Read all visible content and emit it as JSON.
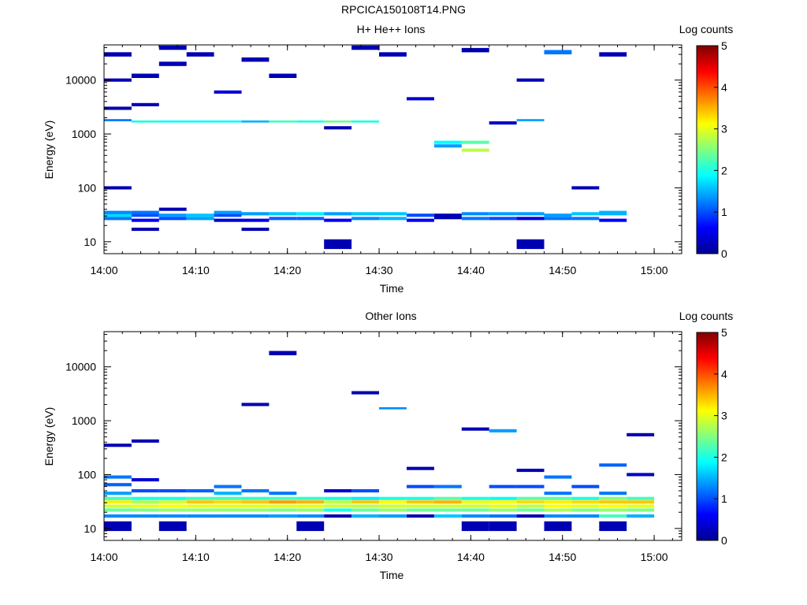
{
  "page_title": "RPCICA150108T14.PNG",
  "colormap": [
    "#00008f",
    "#0000ff",
    "#0080ff",
    "#00ffff",
    "#80ff80",
    "#ffff00",
    "#ff8000",
    "#ff0000",
    "#800000"
  ],
  "chart_data": [
    {
      "type": "heatmap",
      "title": "H+ He++ Ions",
      "xlabel": "Time",
      "ylabel": "Energy (eV)",
      "yscale": "log",
      "ylim": [
        6,
        45000
      ],
      "xlim": [
        "14:00",
        "15:03"
      ],
      "x_ticks": [
        "14:00",
        "14:10",
        "14:20",
        "14:30",
        "14:40",
        "14:50",
        "15:00"
      ],
      "y_ticks": [
        "10",
        "100",
        "1000",
        "10000"
      ],
      "colorbar": {
        "label": "Log counts",
        "range": [
          0,
          5
        ],
        "ticks": [
          "0",
          "1",
          "2",
          "3",
          "4",
          "5"
        ]
      },
      "time_bins": [
        "14:00",
        "14:03",
        "14:06",
        "14:09",
        "14:12",
        "14:15",
        "14:18",
        "14:21",
        "14:24",
        "14:27",
        "14:30",
        "14:33",
        "14:36",
        "14:39",
        "14:42",
        "14:45",
        "14:48",
        "14:51",
        "14:54",
        "14:57",
        "15:00"
      ],
      "cells": [
        [
          0,
          10,
          27,
          1.2
        ],
        [
          0,
          10,
          31,
          1.7
        ],
        [
          0,
          10,
          35,
          1.3
        ],
        [
          0,
          10,
          100,
          0.2
        ],
        [
          0,
          10,
          1800,
          1.2
        ],
        [
          0,
          10,
          3000,
          0.2
        ],
        [
          0,
          10,
          10000,
          0.2
        ],
        [
          0,
          10,
          30000,
          0.2
        ],
        [
          1,
          10,
          17,
          0.2
        ],
        [
          1,
          10,
          25,
          0.6
        ],
        [
          1,
          10,
          31,
          1.0
        ],
        [
          1,
          10,
          35,
          1.2
        ],
        [
          1,
          10,
          1700,
          2.0
        ],
        [
          1,
          10,
          3500,
          0.2
        ],
        [
          1,
          10,
          12000,
          0.2
        ],
        [
          2,
          10,
          27,
          1.0
        ],
        [
          2,
          10,
          31,
          1.4
        ],
        [
          2,
          10,
          40,
          0.2
        ],
        [
          2,
          10,
          1700,
          1.9
        ],
        [
          2,
          10,
          20000,
          0.2
        ],
        [
          2,
          10,
          40000,
          0.2
        ],
        [
          3,
          10,
          27,
          1.4
        ],
        [
          3,
          10,
          31,
          1.6
        ],
        [
          3,
          10,
          1700,
          1.9
        ],
        [
          3,
          10,
          30000,
          0.2
        ],
        [
          4,
          10,
          25,
          0.4
        ],
        [
          4,
          10,
          31,
          1.0
        ],
        [
          4,
          10,
          35,
          1.4
        ],
        [
          4,
          10,
          1700,
          1.9
        ],
        [
          4,
          10,
          6000,
          0.4
        ],
        [
          5,
          10,
          17,
          0.2
        ],
        [
          5,
          10,
          25,
          0.5
        ],
        [
          5,
          10,
          33,
          1.4
        ],
        [
          5,
          10,
          1700,
          1.5
        ],
        [
          5,
          10,
          24000,
          0.2
        ],
        [
          6,
          10,
          27,
          1.1
        ],
        [
          6,
          10,
          33,
          1.6
        ],
        [
          6,
          10,
          1700,
          2.2
        ],
        [
          6,
          10,
          12000,
          0.2
        ],
        [
          7,
          10,
          27,
          1.1
        ],
        [
          7,
          10,
          33,
          1.8
        ],
        [
          7,
          10,
          1700,
          2.0
        ],
        [
          8,
          10,
          9,
          0.2
        ],
        [
          8,
          10,
          25,
          0.6
        ],
        [
          8,
          10,
          33,
          1.4
        ],
        [
          8,
          10,
          1700,
          2.4
        ],
        [
          8,
          10,
          1300,
          0.2
        ],
        [
          9,
          10,
          27,
          1.3
        ],
        [
          9,
          10,
          33,
          1.6
        ],
        [
          9,
          10,
          1700,
          2.0
        ],
        [
          9,
          10,
          40000,
          0.2
        ],
        [
          10,
          10,
          27,
          1.5
        ],
        [
          10,
          10,
          33,
          1.6
        ],
        [
          10,
          10,
          30000,
          0.2
        ],
        [
          11,
          10,
          25,
          0.6
        ],
        [
          11,
          10,
          31,
          1.0
        ],
        [
          11,
          10,
          4500,
          0.4
        ],
        [
          12,
          10,
          28,
          0.2
        ],
        [
          12,
          10,
          31,
          0.2
        ],
        [
          12,
          10,
          700,
          1.9
        ],
        [
          12,
          10,
          600,
          1.4
        ],
        [
          13,
          10,
          27,
          1.2
        ],
        [
          13,
          10,
          33,
          1.3
        ],
        [
          13,
          10,
          500,
          2.8
        ],
        [
          13,
          10,
          700,
          2.3
        ],
        [
          13,
          10,
          36000,
          0.2
        ],
        [
          14,
          10,
          27,
          1.0
        ],
        [
          14,
          10,
          33,
          1.4
        ],
        [
          14,
          10,
          1600,
          0.3
        ],
        [
          15,
          10,
          9,
          0.2
        ],
        [
          15,
          10,
          27,
          0.5
        ],
        [
          15,
          10,
          33,
          1.4
        ],
        [
          15,
          10,
          1800,
          1.4
        ],
        [
          15,
          10,
          10000,
          0.2
        ],
        [
          16,
          10,
          27,
          1.2
        ],
        [
          16,
          10,
          31,
          1.4
        ],
        [
          16,
          10,
          33000,
          1.2
        ],
        [
          17,
          10,
          27,
          1.2
        ],
        [
          17,
          10,
          33,
          1.6
        ],
        [
          17,
          10,
          100,
          0.2
        ],
        [
          18,
          10,
          25,
          0.6
        ],
        [
          18,
          10,
          33,
          1.5
        ],
        [
          18,
          10,
          35,
          1.5
        ],
        [
          18,
          10,
          30000,
          0.2
        ]
      ]
    },
    {
      "type": "heatmap",
      "title": "Other Ions",
      "xlabel": "Time",
      "ylabel": "Energy (eV)",
      "yscale": "log",
      "ylim": [
        6,
        45000
      ],
      "xlim": [
        "14:00",
        "15:03"
      ],
      "x_ticks": [
        "14:00",
        "14:10",
        "14:20",
        "14:30",
        "14:40",
        "14:50",
        "15:00"
      ],
      "y_ticks": [
        "10",
        "100",
        "1000",
        "10000"
      ],
      "colorbar": {
        "label": "Log counts",
        "range": [
          0,
          5
        ],
        "ticks": [
          "0",
          "1",
          "2",
          "3",
          "4",
          "5"
        ]
      },
      "cells": [
        [
          0,
          10,
          11,
          0.2
        ],
        [
          0,
          10,
          17,
          1.3
        ],
        [
          0,
          10,
          22,
          2.4
        ],
        [
          0,
          10,
          26,
          2.9
        ],
        [
          0,
          10,
          31,
          3.2
        ],
        [
          0,
          10,
          36,
          2.2
        ],
        [
          0,
          10,
          45,
          1.4
        ],
        [
          0,
          10,
          65,
          1.1
        ],
        [
          0,
          10,
          90,
          1.2
        ],
        [
          0,
          10,
          350,
          0.2
        ],
        [
          1,
          10,
          17,
          1.3
        ],
        [
          1,
          10,
          22,
          2.5
        ],
        [
          1,
          10,
          26,
          3.0
        ],
        [
          1,
          10,
          31,
          2.7
        ],
        [
          1,
          10,
          36,
          2.0
        ],
        [
          1,
          10,
          50,
          1.0
        ],
        [
          1,
          10,
          80,
          0.4
        ],
        [
          1,
          10,
          420,
          0.2
        ],
        [
          2,
          10,
          11,
          0.2
        ],
        [
          2,
          10,
          17,
          1.3
        ],
        [
          2,
          10,
          22,
          2.6
        ],
        [
          2,
          10,
          26,
          3.1
        ],
        [
          2,
          10,
          31,
          2.9
        ],
        [
          2,
          10,
          36,
          2.0
        ],
        [
          2,
          10,
          50,
          1.0
        ],
        [
          3,
          10,
          17,
          1.3
        ],
        [
          3,
          10,
          22,
          2.6
        ],
        [
          3,
          10,
          26,
          3.0
        ],
        [
          3,
          10,
          31,
          3.4
        ],
        [
          3,
          10,
          36,
          2.2
        ],
        [
          3,
          10,
          50,
          1.1
        ],
        [
          4,
          10,
          17,
          1.3
        ],
        [
          4,
          10,
          22,
          2.6
        ],
        [
          4,
          10,
          26,
          3.0
        ],
        [
          4,
          10,
          31,
          3.3
        ],
        [
          4,
          10,
          36,
          2.2
        ],
        [
          4,
          10,
          45,
          1.5
        ],
        [
          4,
          10,
          60,
          1.2
        ],
        [
          5,
          10,
          17,
          1.3
        ],
        [
          5,
          10,
          22,
          2.6
        ],
        [
          5,
          10,
          26,
          3.0
        ],
        [
          5,
          10,
          31,
          3.4
        ],
        [
          5,
          10,
          36,
          2.1
        ],
        [
          5,
          10,
          50,
          1.2
        ],
        [
          5,
          10,
          2000,
          0.2
        ],
        [
          6,
          10,
          17,
          1.4
        ],
        [
          6,
          10,
          22,
          2.5
        ],
        [
          6,
          10,
          26,
          3.0
        ],
        [
          6,
          10,
          31,
          3.6
        ],
        [
          6,
          10,
          36,
          2.2
        ],
        [
          6,
          10,
          45,
          1.2
        ],
        [
          6,
          10,
          18000,
          0.2
        ],
        [
          7,
          10,
          11,
          0.2
        ],
        [
          7,
          10,
          17,
          1.3
        ],
        [
          7,
          10,
          22,
          2.6
        ],
        [
          7,
          10,
          26,
          3.0
        ],
        [
          7,
          10,
          31,
          3.5
        ],
        [
          7,
          10,
          36,
          2.1
        ],
        [
          8,
          10,
          17,
          0.2
        ],
        [
          8,
          10,
          22,
          2.0
        ],
        [
          8,
          10,
          26,
          2.9
        ],
        [
          8,
          10,
          31,
          2.8
        ],
        [
          8,
          10,
          36,
          2.0
        ],
        [
          8,
          10,
          50,
          0.4
        ],
        [
          9,
          10,
          17,
          1.5
        ],
        [
          9,
          10,
          22,
          2.4
        ],
        [
          9,
          10,
          26,
          2.8
        ],
        [
          9,
          10,
          31,
          3.4
        ],
        [
          9,
          10,
          36,
          1.8
        ],
        [
          9,
          10,
          50,
          1.0
        ],
        [
          9,
          10,
          3300,
          0.2
        ],
        [
          10,
          10,
          17,
          1.4
        ],
        [
          10,
          10,
          22,
          2.6
        ],
        [
          10,
          10,
          26,
          2.9
        ],
        [
          10,
          10,
          31,
          3.1
        ],
        [
          10,
          10,
          36,
          2.0
        ],
        [
          10,
          10,
          1700,
          1.3
        ],
        [
          11,
          10,
          17,
          0.2
        ],
        [
          11,
          10,
          22,
          2.4
        ],
        [
          11,
          10,
          26,
          2.9
        ],
        [
          11,
          10,
          31,
          3.4
        ],
        [
          11,
          10,
          36,
          2.0
        ],
        [
          11,
          10,
          60,
          1.0
        ],
        [
          11,
          10,
          130,
          0.2
        ],
        [
          12,
          10,
          17,
          1.6
        ],
        [
          12,
          10,
          22,
          2.4
        ],
        [
          12,
          10,
          26,
          2.9
        ],
        [
          12,
          10,
          31,
          3.5
        ],
        [
          12,
          10,
          36,
          2.3
        ],
        [
          12,
          10,
          60,
          1.2
        ],
        [
          13,
          10,
          11,
          0.2
        ],
        [
          13,
          10,
          17,
          1.3
        ],
        [
          13,
          10,
          22,
          2.4
        ],
        [
          13,
          10,
          26,
          2.9
        ],
        [
          13,
          10,
          31,
          3.0
        ],
        [
          13,
          10,
          36,
          2.0
        ],
        [
          13,
          10,
          700,
          0.2
        ],
        [
          14,
          10,
          11,
          0.2
        ],
        [
          14,
          10,
          17,
          1.2
        ],
        [
          14,
          10,
          22,
          2.6
        ],
        [
          14,
          10,
          26,
          3.0
        ],
        [
          14,
          10,
          31,
          3.1
        ],
        [
          14,
          10,
          36,
          1.9
        ],
        [
          14,
          10,
          60,
          1.0
        ],
        [
          14,
          10,
          650,
          1.4
        ],
        [
          15,
          10,
          17,
          0.2
        ],
        [
          15,
          10,
          22,
          2.4
        ],
        [
          15,
          10,
          26,
          2.8
        ],
        [
          15,
          10,
          31,
          3.3
        ],
        [
          15,
          10,
          36,
          2.3
        ],
        [
          15,
          10,
          60,
          1.0
        ],
        [
          15,
          10,
          120,
          0.2
        ],
        [
          16,
          10,
          11,
          0.2
        ],
        [
          16,
          10,
          17,
          1.3
        ],
        [
          16,
          10,
          22,
          2.7
        ],
        [
          16,
          10,
          26,
          3.1
        ],
        [
          16,
          10,
          31,
          3.2
        ],
        [
          16,
          10,
          36,
          2.3
        ],
        [
          16,
          10,
          45,
          1.2
        ],
        [
          16,
          10,
          90,
          1.2
        ],
        [
          17,
          10,
          17,
          1.3
        ],
        [
          17,
          10,
          22,
          2.5
        ],
        [
          17,
          10,
          26,
          3.0
        ],
        [
          17,
          10,
          31,
          3.3
        ],
        [
          17,
          10,
          36,
          2.0
        ],
        [
          17,
          10,
          60,
          1.0
        ],
        [
          18,
          10,
          11,
          0.2
        ],
        [
          18,
          10,
          17,
          2.2
        ],
        [
          18,
          10,
          22,
          2.6
        ],
        [
          18,
          10,
          26,
          3.1
        ],
        [
          18,
          10,
          31,
          3.4
        ],
        [
          18,
          10,
          36,
          2.5
        ],
        [
          18,
          10,
          45,
          1.2
        ],
        [
          18,
          10,
          150,
          1.1
        ],
        [
          19,
          10,
          17,
          1.5
        ],
        [
          19,
          10,
          22,
          2.5
        ],
        [
          19,
          10,
          26,
          3.0
        ],
        [
          19,
          10,
          31,
          3.4
        ],
        [
          19,
          10,
          36,
          2.2
        ],
        [
          19,
          10,
          100,
          0.3
        ],
        [
          19,
          10,
          550,
          0.2
        ]
      ]
    }
  ]
}
